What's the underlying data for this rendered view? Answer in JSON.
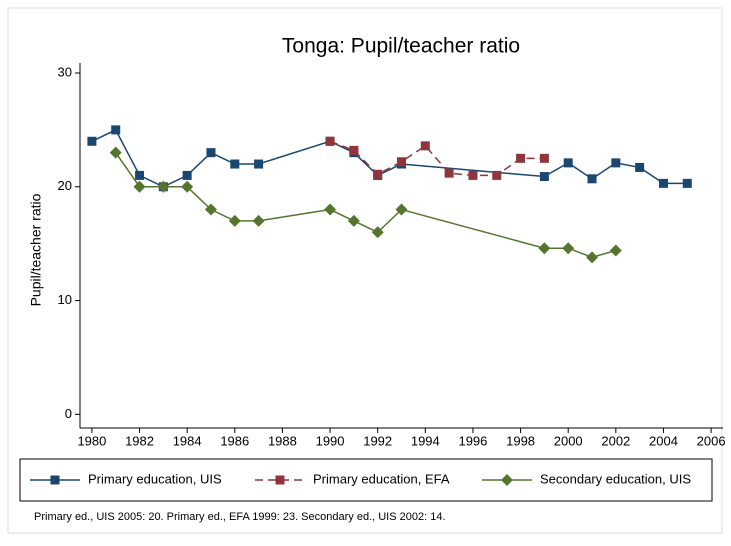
{
  "chart_data": {
    "type": "line",
    "title": "Tonga: Pupil/teacher ratio",
    "ylabel": "Pupil/teacher ratio",
    "note": "Primary ed., UIS 2005: 20. Primary ed., EFA 1999: 23. Secondary ed., UIS 2002: 14.",
    "xlim": [
      1979.5,
      2006.5
    ],
    "xticks": [
      1980,
      1982,
      1984,
      1986,
      1988,
      1990,
      1992,
      1994,
      1996,
      1998,
      2000,
      2002,
      2004,
      2006
    ],
    "ylim": [
      -1.2,
      30
    ],
    "yticks": [
      0,
      10,
      20,
      30
    ],
    "series": [
      {
        "name": "Primary education, UIS",
        "color": "#1a476f",
        "marker": "square",
        "dash": false,
        "x": [
          1980,
          1981,
          1982,
          1983,
          1984,
          1985,
          1986,
          1987,
          1990,
          1991,
          1992,
          1993,
          1999,
          2000,
          2001,
          2002,
          2003,
          2004,
          2005
        ],
        "values": [
          24,
          25,
          21,
          20,
          21,
          23,
          22,
          22,
          24,
          23,
          21,
          22,
          20.9,
          22.1,
          20.7,
          22.1,
          21.7,
          20.3,
          20.3
        ]
      },
      {
        "name": "Primary education, EFA",
        "color": "#90353b",
        "marker": "square",
        "dash": true,
        "x": [
          1990,
          1991,
          1992,
          1993,
          1994,
          1995,
          1996,
          1997,
          1998,
          1999
        ],
        "values": [
          24,
          23.2,
          21.1,
          22.2,
          23.6,
          21.2,
          21,
          21,
          22.5,
          22.5
        ]
      },
      {
        "name": "Secondary education, UIS",
        "color": "#55752f",
        "marker": "diamond",
        "dash": false,
        "x": [
          1981,
          1982,
          1983,
          1984,
          1985,
          1986,
          1987,
          1990,
          1991,
          1992,
          1993,
          1999,
          2000,
          2001,
          2002
        ],
        "values": [
          23,
          20,
          20,
          20,
          18,
          17,
          17,
          18,
          17,
          16,
          18,
          14.6,
          14.6,
          13.8,
          14.4
        ]
      }
    ]
  }
}
